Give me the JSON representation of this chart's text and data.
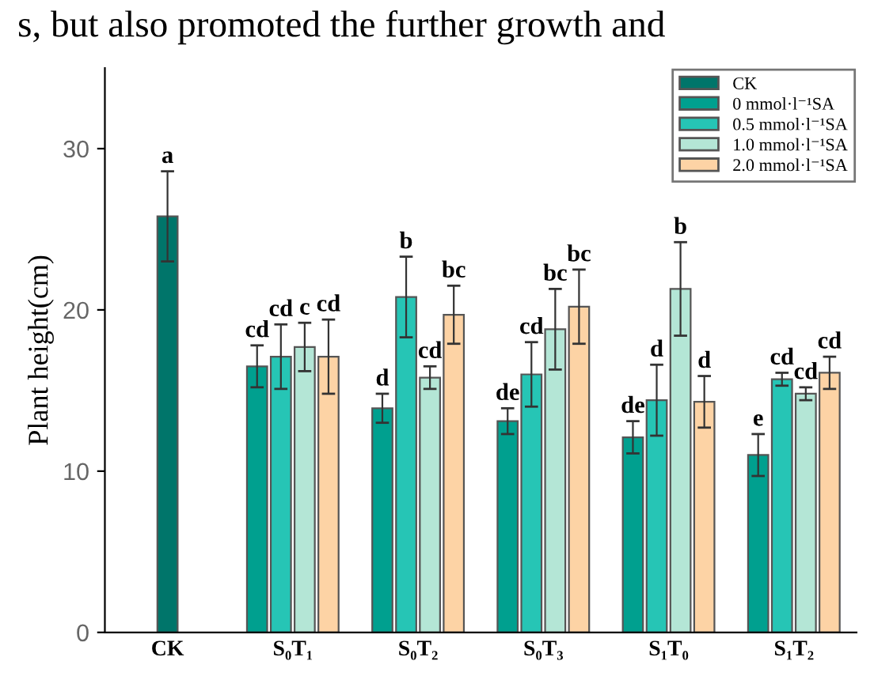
{
  "chart_data": {
    "type": "bar",
    "ylabel": "Plant height(cm)",
    "annotations": [
      "s, but also promoted the further growth and"
    ],
    "categories": [
      "CK",
      "S₀T₁",
      "S₀T₂",
      "S₀T₃",
      "S₁T₀",
      "S₁T₂"
    ],
    "series": [
      {
        "name": "CK",
        "color": "#00756a",
        "values": [
          25.8,
          null,
          null,
          null,
          null,
          null
        ],
        "errors": [
          2.8,
          null,
          null,
          null,
          null,
          null
        ],
        "value_labels": [
          "a",
          null,
          null,
          null,
          null,
          null
        ]
      },
      {
        "name": "0 mmol·l⁻¹SA",
        "color": "#00a08f",
        "values": [
          null,
          16.5,
          13.9,
          13.1,
          12.1,
          11.0
        ],
        "errors": [
          null,
          1.3,
          0.9,
          0.8,
          1.0,
          1.3
        ],
        "value_labels": [
          null,
          "cd",
          "d",
          "de",
          "de",
          "e"
        ]
      },
      {
        "name": "0.5 mmol·l⁻¹SA",
        "color": "#26c5b5",
        "values": [
          null,
          17.1,
          20.8,
          16.0,
          14.4,
          15.7
        ],
        "errors": [
          null,
          2.0,
          2.5,
          2.0,
          2.2,
          0.4
        ],
        "value_labels": [
          null,
          "cd",
          "b",
          "cd",
          "d",
          "cd"
        ]
      },
      {
        "name": "1.0 mmol·l⁻¹SA",
        "color": "#b4e6d6",
        "values": [
          null,
          17.7,
          15.8,
          18.8,
          21.3,
          14.8
        ],
        "errors": [
          null,
          1.5,
          0.7,
          2.5,
          2.9,
          0.4
        ],
        "value_labels": [
          null,
          "c",
          "cd",
          "bc",
          "b",
          "cd"
        ]
      },
      {
        "name": "2.0 mmol·l⁻¹SA",
        "color": "#fdd3a5",
        "values": [
          null,
          17.1,
          19.7,
          20.2,
          14.3,
          16.1
        ],
        "errors": [
          null,
          2.3,
          1.8,
          2.3,
          1.6,
          1.0
        ],
        "value_labels": [
          null,
          "cd",
          "bc",
          "bc",
          "d",
          "cd"
        ]
      }
    ],
    "ylim": [
      0,
      35
    ],
    "yticks": [
      0,
      10,
      20,
      30
    ],
    "grid": false,
    "legend": "top right"
  }
}
